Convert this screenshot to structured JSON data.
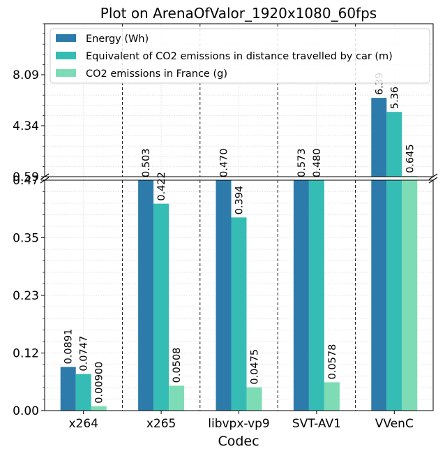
{
  "chart_data": {
    "type": "bar",
    "title": "Plot on ArenaOfValor_1920x1080_60fps",
    "xlabel": "Codec",
    "ylabel": "",
    "categories": [
      "x264",
      "x265",
      "libvpx-vp9",
      "SVT-AV1",
      "VVenC"
    ],
    "series": [
      {
        "name": "Energy (Wh)",
        "color": "#2c7bab",
        "values": [
          0.0891,
          0.503,
          0.47,
          0.573,
          6.39
        ],
        "labels": [
          "0.0891",
          "0.503",
          "0.470",
          "0.573",
          "6.39"
        ]
      },
      {
        "name": "Equivalent of CO2 emissions in distance travelled by car (m)",
        "color": "#35bdb5",
        "values": [
          0.0747,
          0.422,
          0.394,
          0.48,
          5.36
        ],
        "labels": [
          "0.0747",
          "0.422",
          "0.394",
          "0.480",
          "5.36"
        ]
      },
      {
        "name": "CO2 emissions in France (g)",
        "color": "#7ddcb5",
        "values": [
          0.009,
          0.0508,
          0.0475,
          0.0578,
          0.645
        ],
        "labels": [
          "0.00900",
          "0.0508",
          "0.0475",
          "0.0578",
          "0.645"
        ]
      }
    ],
    "broken_axis": {
      "lower": {
        "ylim": [
          0,
          0.47
        ],
        "ticks": [
          "0.00",
          "0.12",
          "0.23",
          "0.35",
          "0.47"
        ]
      },
      "upper": {
        "ylim": [
          0.59,
          11.84
        ],
        "ticks": [
          "0.59",
          "4.34",
          "8.09"
        ]
      }
    },
    "grid": true,
    "legend_position": "top-right"
  }
}
